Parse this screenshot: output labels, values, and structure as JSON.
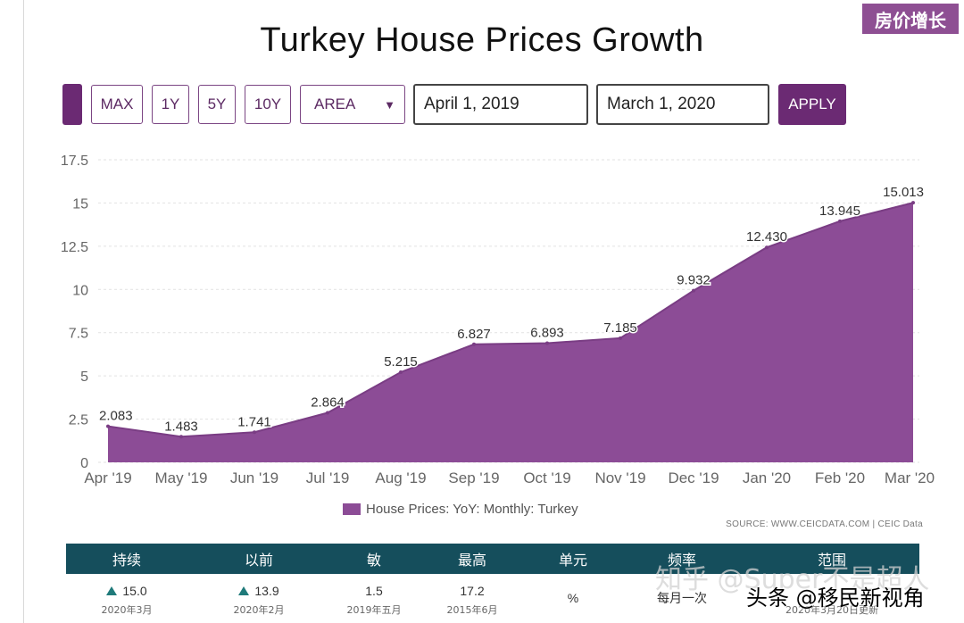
{
  "badge": "房价增长",
  "toolbar": {
    "max": "MAX",
    "y1": "1Y",
    "y5": "5Y",
    "y10": "10Y",
    "chart_type": "AREA",
    "start_date": "April 1, 2019",
    "end_date": "March 1, 2020",
    "apply": "APPLY"
  },
  "chart_data": {
    "type": "area",
    "title": "Turkey House Prices Growth",
    "categories": [
      "Apr '19",
      "May '19",
      "Jun '19",
      "Jul '19",
      "Aug '19",
      "Sep '19",
      "Oct '19",
      "Nov '19",
      "Dec '19",
      "Jan '20",
      "Feb '20",
      "Mar '20"
    ],
    "series": [
      {
        "name": "House Prices: YoY: Monthly: Turkey",
        "values": [
          2.083,
          1.483,
          1.741,
          2.864,
          5.215,
          6.827,
          6.893,
          7.185,
          9.932,
          12.43,
          13.945,
          15.013
        ],
        "labels": [
          "2.083",
          "1.483",
          "1.741",
          "2.864",
          "5.215",
          "6.827",
          "6.893",
          "7.185",
          "9.932",
          "12.430",
          "13.945",
          "15.013"
        ]
      }
    ],
    "y_ticks": [
      "0",
      "2.5",
      "5",
      "7.5",
      "10",
      "12.5",
      "15",
      "17.5"
    ],
    "ylim": [
      0,
      17.5
    ],
    "grid": true,
    "legend": "bottom-center",
    "color": "#8c4c96"
  },
  "source": "SOURCE: WWW.CEICDATA.COM | CEIC Data",
  "stats": {
    "headers": [
      "持续",
      "以前",
      "敏",
      "最高",
      "单元",
      "频率",
      "范围"
    ],
    "latest": {
      "value": "15.0",
      "date": "2020年3月"
    },
    "previous": {
      "value": "13.9",
      "date": "2020年2月"
    },
    "min": {
      "value": "1.5",
      "date": "2019年五月"
    },
    "max": {
      "value": "17.2",
      "date": "2015年6月"
    },
    "unit": "%",
    "frequency": "每月一次",
    "range_date": "2020年3月20日更新"
  },
  "watermarks": {
    "zhihu": "知乎 @Super不是超人",
    "toutiao": "头条 @移民新视角"
  }
}
